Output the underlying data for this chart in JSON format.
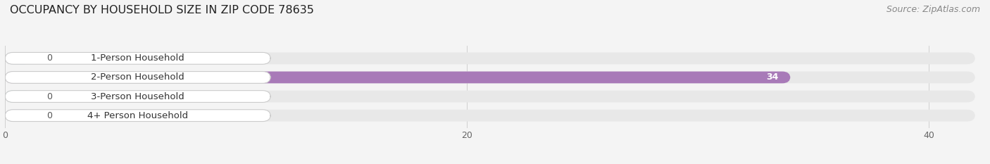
{
  "title": "OCCUPANCY BY HOUSEHOLD SIZE IN ZIP CODE 78635",
  "source": "Source: ZipAtlas.com",
  "categories": [
    "1-Person Household",
    "2-Person Household",
    "3-Person Household",
    "4+ Person Household"
  ],
  "values": [
    0,
    34,
    0,
    0
  ],
  "bar_colors": [
    "#9ab0d4",
    "#a87ab8",
    "#50c4bc",
    "#a0a8dc"
  ],
  "xlim": [
    0,
    42
  ],
  "xticks": [
    0,
    20,
    40
  ],
  "background_color": "#f4f4f4",
  "bar_bg_color": "#e8e8e8",
  "title_fontsize": 11.5,
  "source_fontsize": 9,
  "label_fontsize": 9.5,
  "value_fontsize": 9,
  "bar_height": 0.62,
  "figsize": [
    14.06,
    2.33
  ],
  "dpi": 100
}
